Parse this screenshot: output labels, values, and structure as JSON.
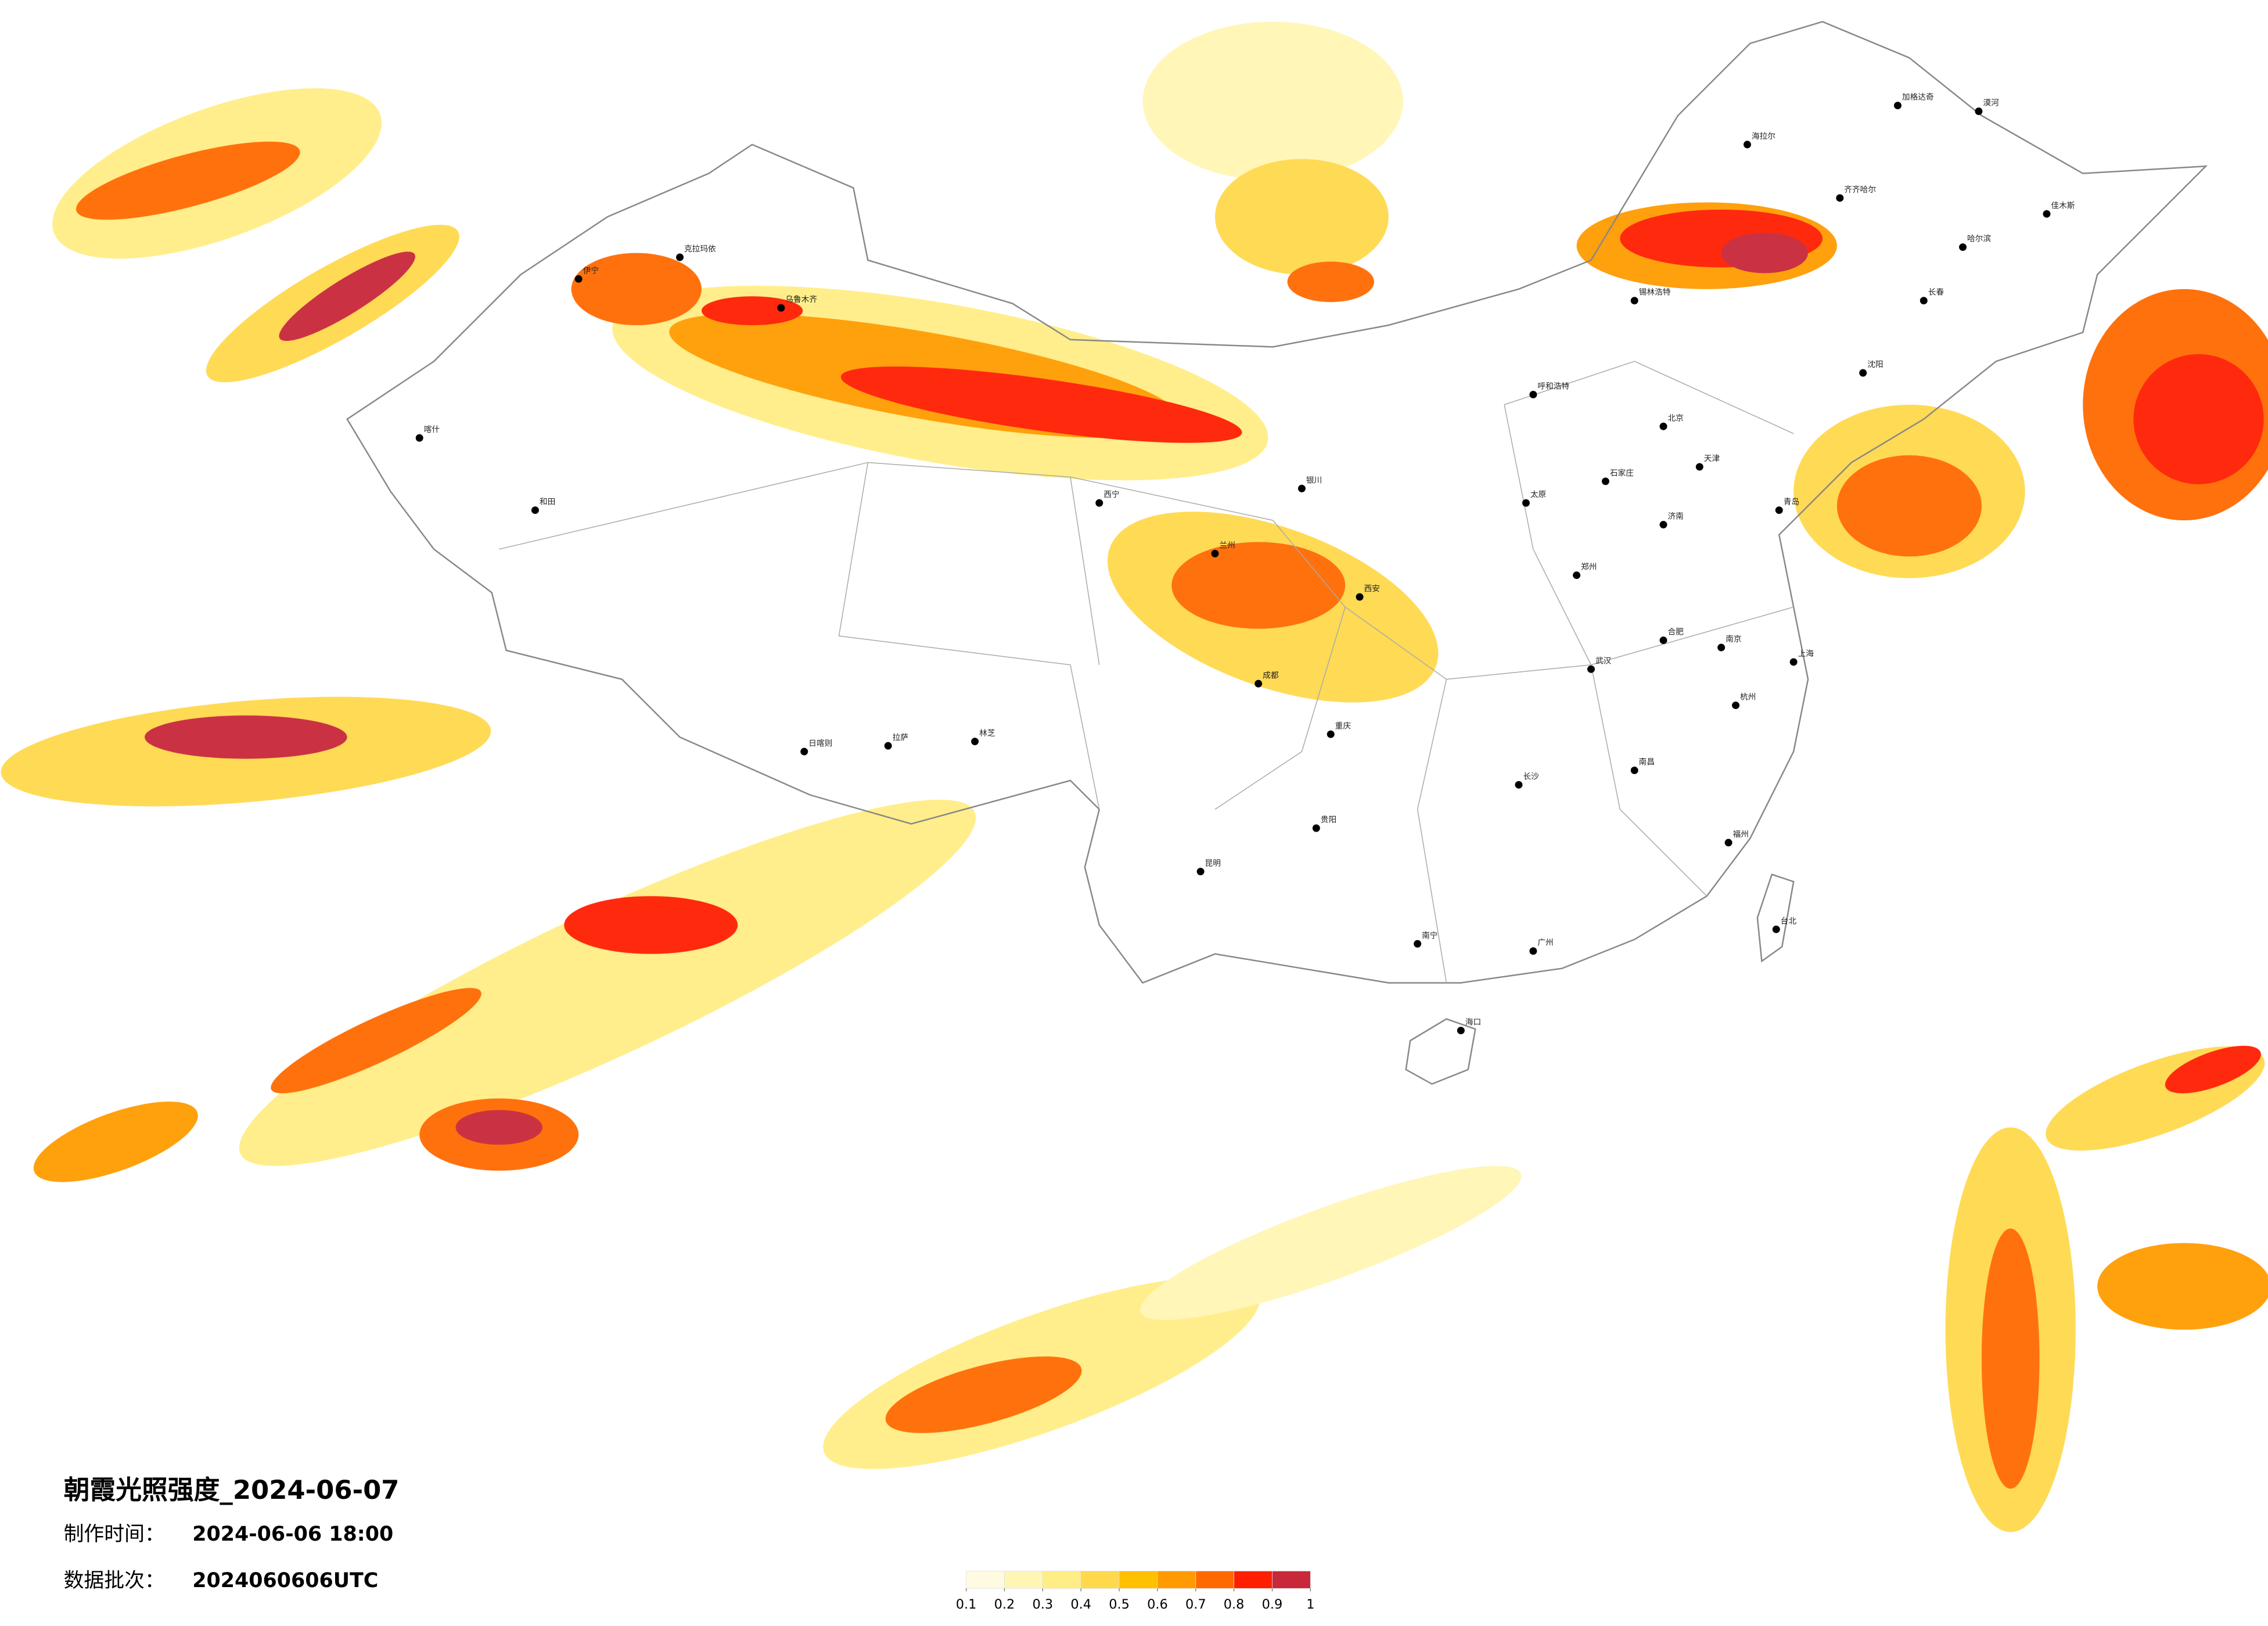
{
  "title": "朝霞光照强度_2024-06-07",
  "made_label": "制作时间：",
  "made_time": "2024-06-06 18:00",
  "batch_label": "数据批次：",
  "batch": "2024060606UTC",
  "legend": {
    "ticks": [
      0.1,
      0.2,
      0.3,
      0.4,
      0.5,
      0.6,
      0.7,
      0.8,
      0.9,
      1
    ],
    "colors": [
      "#fffbe0",
      "#fff6b5",
      "#ffee85",
      "#ffd84c",
      "#ffc000",
      "#ff9b00",
      "#ff6a00",
      "#ff1e00",
      "#c8283a"
    ]
  },
  "cities": [
    "漠河",
    "加格达奇",
    "海拉尔",
    "齐齐哈尔",
    "哈尔滨",
    "佳木斯",
    "长春",
    "锡林浩特",
    "沈阳",
    "呼和浩特",
    "北京",
    "天津",
    "石家庄",
    "太原",
    "济南",
    "青岛",
    "郑州",
    "西安",
    "兰州",
    "银川",
    "西宁",
    "乌鲁木齐",
    "克拉玛依",
    "伊宁",
    "喀什",
    "和田",
    "拉萨",
    "日喀则",
    "林芝",
    "成都",
    "重庆",
    "贵阳",
    "昆明",
    "南宁",
    "海口",
    "广州",
    "长沙",
    "武汉",
    "南昌",
    "福州",
    "杭州",
    "南京",
    "上海",
    "合肥",
    "台北"
  ]
}
